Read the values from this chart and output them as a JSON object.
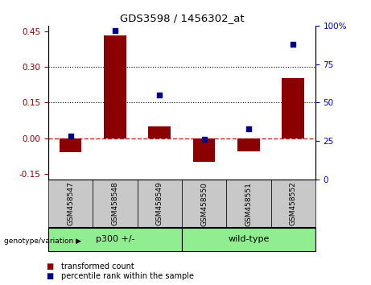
{
  "title": "GDS3598 / 1456302_at",
  "samples": [
    "GSM458547",
    "GSM458548",
    "GSM458549",
    "GSM458550",
    "GSM458551",
    "GSM458552"
  ],
  "bar_values": [
    -0.06,
    0.435,
    0.05,
    -0.1,
    -0.055,
    0.255
  ],
  "percentile_values": [
    28,
    97,
    55,
    26,
    33,
    88
  ],
  "group_labels": [
    "p300 +/-",
    "wild-type"
  ],
  "group_colors": [
    "#90EE90",
    "#90EE90"
  ],
  "group_starts": [
    0,
    3
  ],
  "group_ends": [
    3,
    6
  ],
  "bar_color": "#8B0000",
  "scatter_color": "#00008B",
  "ylim_left": [
    -0.175,
    0.475
  ],
  "ylim_right": [
    0,
    100
  ],
  "yticks_left": [
    -0.15,
    0,
    0.15,
    0.3,
    0.45
  ],
  "yticks_right": [
    0,
    25,
    50,
    75,
    100
  ],
  "hline_dotted": [
    0.15,
    0.3
  ],
  "tick_color_left": "#8B0000",
  "tick_color_right": "#0000CD",
  "legend_items": [
    "transformed count",
    "percentile rank within the sample"
  ],
  "genotype_label": "genotype/variation",
  "sample_bg_color": "#C8C8C8",
  "figsize": [
    4.61,
    3.54
  ],
  "dpi": 100
}
